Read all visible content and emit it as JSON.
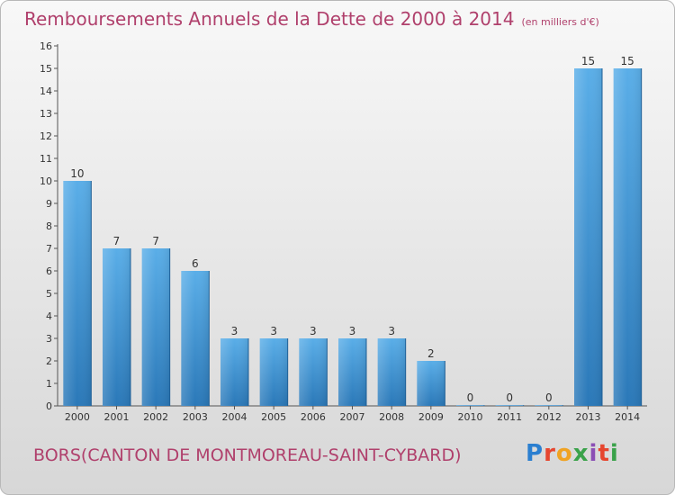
{
  "header": {
    "title": "Remboursements Annuels de la Dette de 2000 à 2014",
    "unit": "(en milliers d'€)"
  },
  "footer": {
    "commune": "BORS(CANTON DE MONTMOREAU-SAINT-CYBARD)",
    "brand": "Proxiti"
  },
  "colors": {
    "title": "#b0406c",
    "bar_light": "#5aaee8",
    "bar_dark": "#2a78b8"
  },
  "chart_data": {
    "type": "bar",
    "categories": [
      "2000",
      "2001",
      "2002",
      "2003",
      "2004",
      "2005",
      "2006",
      "2007",
      "2008",
      "2009",
      "2010",
      "2011",
      "2012",
      "2013",
      "2014"
    ],
    "values": [
      10,
      7,
      7,
      6,
      3,
      3,
      3,
      3,
      3,
      2,
      0,
      0,
      0,
      15,
      15
    ],
    "data_labels": [
      "10",
      "7",
      "7",
      "6",
      "3",
      "3",
      "3",
      "3",
      "3",
      "2",
      "0",
      "0",
      "0",
      "15",
      "15"
    ],
    "y_ticks": [
      "0",
      "1",
      "2",
      "3",
      "4",
      "5",
      "6",
      "7",
      "8",
      "9",
      "10",
      "11",
      "12",
      "13",
      "14",
      "15",
      "16"
    ],
    "title": "Remboursements Annuels de la Dette de 2000 à 2014",
    "xlabel": "",
    "ylabel": "",
    "ylim": [
      0,
      16
    ],
    "grid": false,
    "legend": "none"
  }
}
